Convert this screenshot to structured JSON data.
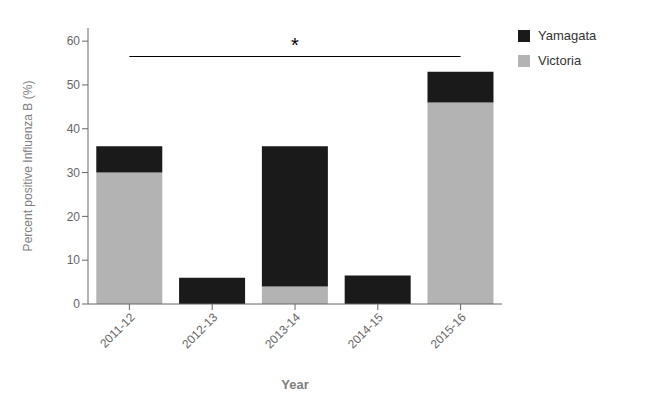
{
  "chart_data": {
    "type": "bar",
    "stacked": true,
    "categories": [
      "2011-12",
      "2012-13",
      "2013-14",
      "2014-15",
      "2015-16"
    ],
    "series": [
      {
        "name": "Victoria",
        "color": "#b3b3b3",
        "values": [
          30,
          0,
          4,
          0,
          46
        ]
      },
      {
        "name": "Yamagata",
        "color": "#1a1a1a",
        "values": [
          6,
          6,
          32,
          6.5,
          7
        ]
      }
    ],
    "x_label": "Year",
    "y_label": "Percent positive Influenza B (%)",
    "ylim": [
      0,
      63
    ],
    "yticks": [
      0,
      10,
      20,
      30,
      40,
      50,
      60
    ],
    "grid": false,
    "legend": "right",
    "annotations": [
      {
        "type": "bracket",
        "text": "*",
        "from": "2011-12",
        "to": "2015-16",
        "y": 56.5,
        "text_y": 57.5
      }
    ]
  }
}
